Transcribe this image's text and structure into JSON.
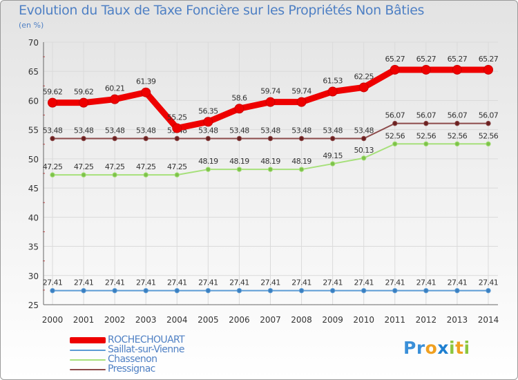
{
  "title": "Evolution du Taux de Taxe Foncière sur les Propriétés Non Bâties",
  "subtitle": "(en %)",
  "logo": {
    "letters": [
      "P",
      "r",
      "o",
      "x",
      "i",
      "t",
      "i"
    ],
    "colors": [
      "#3a8fd8",
      "#3a8fd8",
      "#f0a020",
      "#1e7fd0",
      "#8cc63e",
      "#f0a020",
      "#8cc63e"
    ]
  },
  "chart_data": {
    "type": "line",
    "title": "Evolution du Taux de Taxe Foncière sur les Propriétés Non Bâties",
    "ylabel": "(en %)",
    "xlabel": "",
    "ylim": [
      25,
      70
    ],
    "yticks": [
      "25",
      "30",
      "35",
      "40",
      "45",
      "50",
      "55",
      "60",
      "65",
      "70"
    ],
    "categories": [
      "2000",
      "2001",
      "2002",
      "2003",
      "2004",
      "2005",
      "2006",
      "2007",
      "2008",
      "2009",
      "2010",
      "2011",
      "2012",
      "2013",
      "2014"
    ],
    "series": [
      {
        "name": "ROCHECHOUART",
        "color": "#ee0000",
        "marker": "#ee0000",
        "values": [
          59.62,
          59.62,
          60.21,
          61.39,
          55.25,
          56.35,
          58.6,
          59.74,
          59.74,
          61.53,
          62.25,
          65.27,
          65.27,
          65.27,
          65.27
        ],
        "labels": [
          "59.62",
          "59.62",
          "60.21",
          "61.39",
          "55.25",
          "56.35",
          "58.6",
          "59.74",
          "59.74",
          "61.53",
          "62.25",
          "65.27",
          "65.27",
          "65.27",
          "65.27"
        ]
      },
      {
        "name": "Saillat-sur-Vienne",
        "color": "#5b9bd5",
        "marker": "#3a7fc0",
        "values": [
          27.41,
          27.41,
          27.41,
          27.41,
          27.41,
          27.41,
          27.41,
          27.41,
          27.41,
          27.41,
          27.41,
          27.41,
          27.41,
          27.41,
          27.41
        ],
        "labels": [
          "27.41",
          "27.41",
          "27.41",
          "27.41",
          "27.41",
          "27.41",
          "27.41",
          "27.41",
          "27.41",
          "27.41",
          "27.41",
          "27.41",
          "27.41",
          "27.41",
          "27.41"
        ]
      },
      {
        "name": "Chassenon",
        "color": "#a6e07a",
        "marker": "#7dc24a",
        "values": [
          47.25,
          47.25,
          47.25,
          47.25,
          47.25,
          48.19,
          48.19,
          48.19,
          48.19,
          49.15,
          50.13,
          52.56,
          52.56,
          52.56,
          52.56
        ],
        "labels": [
          "47.25",
          "47.25",
          "47.25",
          "47.25",
          "47.25",
          "48.19",
          "48.19",
          "48.19",
          "48.19",
          "49.15",
          "50.13",
          "52.56",
          "52.56",
          "52.56",
          "52.56"
        ]
      },
      {
        "name": "Pressignac",
        "color": "#8c4a4a",
        "marker": "#6b2020",
        "values": [
          53.48,
          53.48,
          53.48,
          53.48,
          53.48,
          53.48,
          53.48,
          53.48,
          53.48,
          53.48,
          53.48,
          56.07,
          56.07,
          56.07,
          56.07
        ],
        "labels": [
          "53.48",
          "53.48",
          "53.48",
          "53.48",
          "53.48",
          "53.48",
          "53.48",
          "53.48",
          "53.48",
          "53.48",
          "53.48",
          "56.07",
          "56.07",
          "56.07",
          "56.07"
        ]
      }
    ]
  }
}
